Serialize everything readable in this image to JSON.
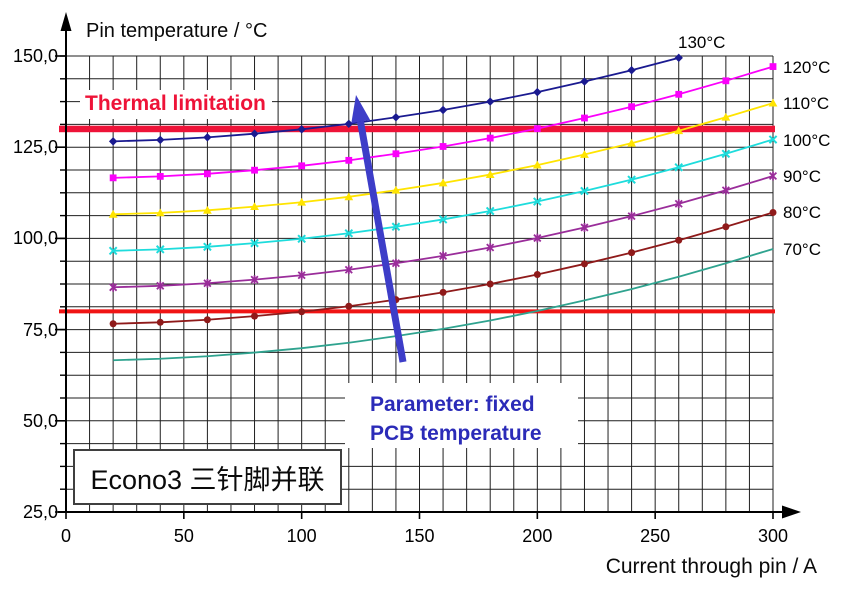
{
  "chart": {
    "y_axis_title": "Pin temperature / °C",
    "x_axis_title": "Current through pin / A"
  },
  "annotations": {
    "thermal_limitation": "Thermal limitation",
    "parameter_line1": "Parameter: fixed",
    "parameter_line2": "PCB temperature",
    "econo3": "Econo3 三针脚并联"
  },
  "colors": {
    "thermal_line_red": "#ee1338",
    "lower_line_red": "#f01414",
    "annotation_red": "#ee1338",
    "annotation_blue": "#2b2bb8",
    "arrow_blue": "#3d3dc8",
    "grid": "#1f1f1f",
    "axis": "#000000",
    "text": "#0a0a0a"
  },
  "chart_data": {
    "type": "line",
    "title": "",
    "xlabel": "Current through pin / A",
    "ylabel": "Pin temperature / °C",
    "xlim": [
      0,
      300
    ],
    "ylim": [
      25,
      150
    ],
    "grid": "on",
    "x_minor_step": 10,
    "y_minor_step": 6.25,
    "x_tick_labels": [
      "0",
      "50",
      "100",
      "150",
      "200",
      "250",
      "300"
    ],
    "x_major_ticks": [
      0,
      50,
      100,
      150,
      200,
      250,
      300
    ],
    "y_tick_labels": [
      "150,0",
      "125,0",
      "100,0",
      "75,0",
      "50,0",
      "25,0"
    ],
    "y_major_ticks": [
      150,
      125,
      100,
      75,
      50,
      25
    ],
    "legend_position": "right",
    "x": [
      20,
      40,
      60,
      80,
      100,
      120,
      140,
      160,
      180,
      200,
      220,
      240,
      260,
      280,
      300
    ],
    "series": [
      {
        "name": "130°C",
        "color": "#1a1a90",
        "marker": "diamond",
        "label_placement": "top",
        "values": [
          126.6,
          127.0,
          127.7,
          128.7,
          129.9,
          131.4,
          133.2,
          135.2,
          137.5,
          140.1,
          143.0,
          146.1,
          149.5
        ]
      },
      {
        "name": "120°C",
        "color": "#fb00fb",
        "marker": "square",
        "label_placement": "right",
        "values": [
          116.6,
          117.0,
          117.7,
          118.7,
          119.9,
          121.4,
          123.2,
          125.2,
          127.5,
          130.1,
          133.0,
          136.1,
          139.5,
          143.2,
          147.1
        ]
      },
      {
        "name": "110°C",
        "color": "#ffe400",
        "marker": "triangle",
        "label_placement": "right",
        "values": [
          106.6,
          107.0,
          107.7,
          108.7,
          109.9,
          111.4,
          113.2,
          115.2,
          117.5,
          120.1,
          123.0,
          126.1,
          129.5,
          133.2,
          137.1
        ]
      },
      {
        "name": "100°C",
        "color": "#1edcdc",
        "marker": "x",
        "label_placement": "right",
        "values": [
          96.6,
          97.0,
          97.7,
          98.7,
          99.9,
          101.4,
          103.2,
          105.2,
          107.5,
          110.1,
          113.0,
          116.1,
          119.5,
          123.2,
          127.1
        ]
      },
      {
        "name": "90°C",
        "color": "#9a2d9a",
        "marker": "star",
        "label_placement": "right",
        "values": [
          86.6,
          87.0,
          87.7,
          88.7,
          89.9,
          91.4,
          93.2,
          95.2,
          97.5,
          100.1,
          103.0,
          106.1,
          109.5,
          113.2,
          117.1
        ]
      },
      {
        "name": "80°C",
        "color": "#8f1a1a",
        "marker": "circle",
        "label_placement": "right",
        "values": [
          76.6,
          77.0,
          77.7,
          78.7,
          79.9,
          81.4,
          83.2,
          85.2,
          87.5,
          90.1,
          93.0,
          96.1,
          99.5,
          103.2,
          107.1
        ]
      },
      {
        "name": "70°C",
        "color": "#2fa38f",
        "marker": "none",
        "label_placement": "right",
        "values": [
          66.6,
          67.0,
          67.7,
          68.7,
          69.9,
          71.4,
          73.2,
          75.2,
          77.5,
          80.1,
          83.0,
          86.1,
          89.5,
          93.2,
          97.1
        ]
      }
    ],
    "reference_lines": [
      {
        "label": "Thermal limitation",
        "y": 130,
        "thickness": 6.5
      },
      {
        "label": "",
        "y": 80,
        "thickness": 4
      }
    ]
  }
}
